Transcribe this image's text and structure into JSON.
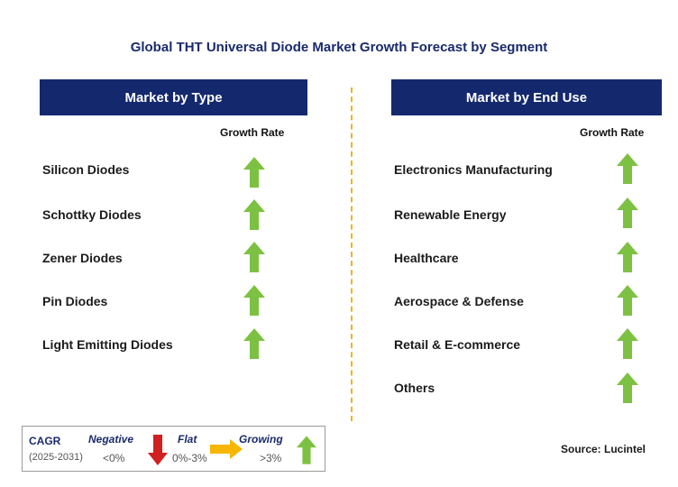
{
  "title": "Global THT Universal Diode Market Growth Forecast by Segment",
  "left": {
    "header": "Market by Type",
    "growth_label": "Growth Rate",
    "items": [
      "Silicon Diodes",
      "Schottky Diodes",
      "Zener Diodes",
      "Pin Diodes",
      "Light Emitting Diodes"
    ]
  },
  "right": {
    "header": "Market by End Use",
    "growth_label": "Growth Rate",
    "items": [
      "Electronics Manufacturing",
      "Renewable Energy",
      "Healthcare",
      "Aerospace & Defense",
      "Retail & E-commerce",
      "Others"
    ]
  },
  "legend": {
    "cagr": "CAGR",
    "period": "(2025-2031)",
    "negative": "Negative",
    "negative_range": "<0%",
    "flat": "Flat",
    "flat_range": "0%-3%",
    "growing": "Growing",
    "growing_range": ">3%"
  },
  "source": "Source: Lucintel",
  "colors": {
    "header_bg": "#14286e",
    "up_arrow": "#7dc142",
    "down_arrow": "#d0201f",
    "flat_arrow": "#f7b600",
    "divider": "#f2b21b"
  },
  "growth_status": {
    "all_items": "growing"
  }
}
